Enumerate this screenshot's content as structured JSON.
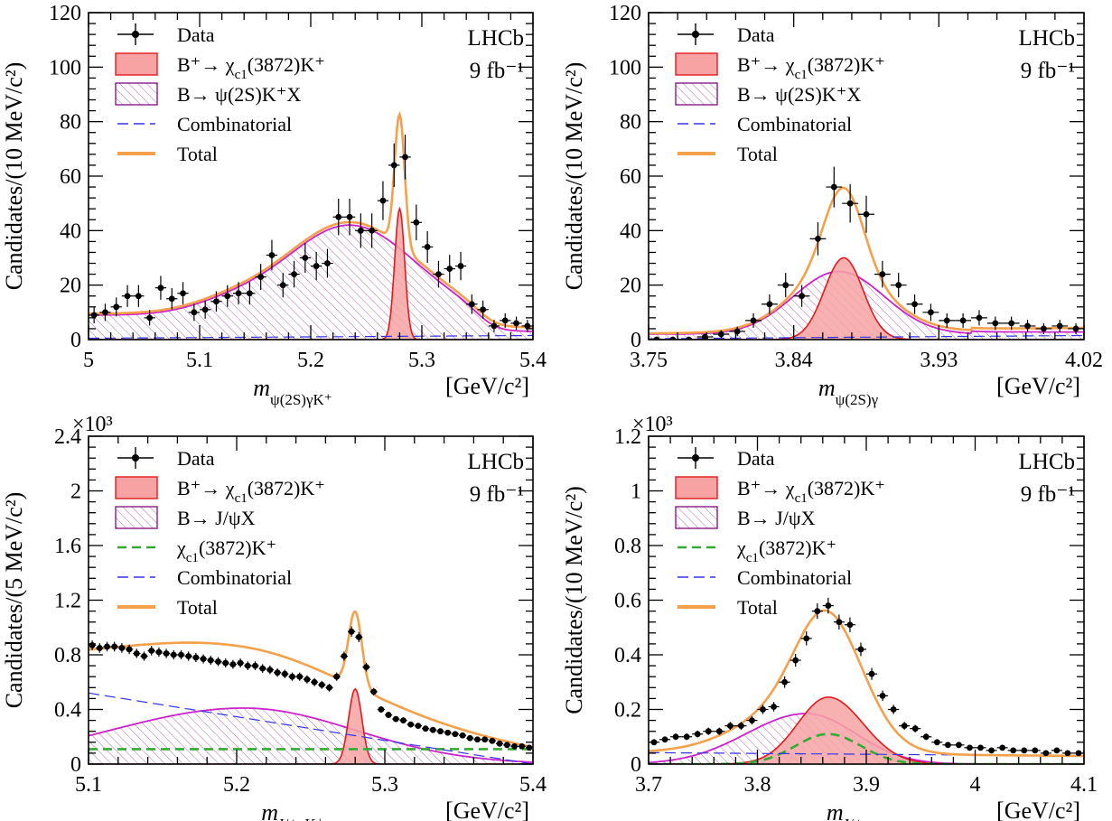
{
  "figure": {
    "legend_labels": {
      "data": "Data",
      "signal": "B⁺→ χ",
      "signal_sub": "c1",
      "signal_tail": "(3872)K⁺",
      "psi2s_bkg": "B→ ψ(2S)K⁺X",
      "jpsi_bkg": "B→ J/ψX",
      "chic_nonres": "χ",
      "chic_nonres_sub": "c1",
      "chic_nonres_tail": "(3872)K⁺",
      "comb": "Combinatorial",
      "total": "Total"
    },
    "experiment": "LHCb",
    "lumi": "9 fb⁻¹",
    "x_unit": "[GeV/c²]"
  },
  "chart_data": [
    {
      "type": "line",
      "panel": "top-left",
      "ylabel": "Candidates/(10 MeV/c²)",
      "xlabel": "m_ψ(2S)γK⁺",
      "xlim": [
        5.0,
        5.4
      ],
      "ylim": [
        0,
        120
      ],
      "xticks": [
        "5",
        "5.1",
        "5.2",
        "5.3",
        "5.4"
      ],
      "yticks": [
        "0",
        "20",
        "40",
        "60",
        "80",
        "100",
        "120"
      ],
      "y_multiplier": "",
      "legend": [
        "Data",
        "B⁺→ χc1(3872)K⁺",
        "B→ ψ(2S)K⁺X",
        "Combinatorial",
        "Total"
      ],
      "legend_placement": "top-left",
      "data_points": {
        "x": [
          5.005,
          5.015,
          5.025,
          5.035,
          5.045,
          5.055,
          5.065,
          5.075,
          5.085,
          5.095,
          5.105,
          5.115,
          5.125,
          5.135,
          5.145,
          5.155,
          5.165,
          5.175,
          5.185,
          5.195,
          5.205,
          5.215,
          5.225,
          5.235,
          5.245,
          5.255,
          5.265,
          5.275,
          5.285,
          5.295,
          5.305,
          5.315,
          5.325,
          5.335,
          5.345,
          5.355,
          5.365,
          5.375,
          5.385,
          5.395
        ],
        "y": [
          9,
          10,
          12,
          16,
          16,
          8,
          19,
          15,
          17,
          10,
          11,
          14,
          16,
          17,
          17,
          23,
          31,
          20,
          24,
          30,
          27,
          28,
          45,
          45,
          40,
          40,
          51,
          64,
          67,
          43,
          34,
          24,
          26,
          27,
          13,
          11,
          5,
          7,
          6,
          5
        ]
      },
      "signal": {
        "mean": 5.28,
        "sigma": 0.0045,
        "peak": 48
      },
      "background_peaking": {
        "shape": "broad hump",
        "peak_x": 5.235,
        "peak_y": 42,
        "plateau_y": 9,
        "tail_y": 3
      },
      "combinatorial": {
        "from_y": 0.5,
        "to_y": 1.5
      },
      "total": {
        "peak_x": 5.28,
        "peak_y": 82
      }
    },
    {
      "type": "line",
      "panel": "top-right",
      "ylabel": "Candidates/(10 MeV/c²)",
      "xlabel": "m_ψ(2S)γ",
      "xlim": [
        3.75,
        4.02
      ],
      "ylim": [
        0,
        120
      ],
      "xticks": [
        "3.75",
        "3.84",
        "3.93",
        "4.02"
      ],
      "yticks": [
        "0",
        "20",
        "40",
        "60",
        "80",
        "100",
        "120"
      ],
      "y_multiplier": "",
      "legend": [
        "Data",
        "B⁺→ χc1(3872)K⁺",
        "B→ ψ(2S)K⁺X",
        "Combinatorial",
        "Total"
      ],
      "legend_placement": "top-left",
      "data_points": {
        "x": [
          3.755,
          3.765,
          3.775,
          3.785,
          3.795,
          3.805,
          3.815,
          3.825,
          3.835,
          3.845,
          3.855,
          3.865,
          3.875,
          3.885,
          3.895,
          3.905,
          3.915,
          3.925,
          3.935,
          3.945,
          3.955,
          3.965,
          3.975,
          3.985,
          3.995,
          4.005,
          4.015
        ],
        "y": [
          0,
          0,
          0,
          1,
          2,
          3,
          7,
          13,
          20,
          16,
          37,
          56,
          50,
          46,
          24,
          20,
          13,
          10,
          7,
          7,
          8,
          6,
          6,
          5,
          4,
          5,
          4
        ]
      },
      "signal": {
        "mean": 3.871,
        "sigma": 0.012,
        "peak": 30
      },
      "background_peaking": {
        "mean": 3.868,
        "sigma": 0.028,
        "peak": 25,
        "tail_y": 2
      },
      "combinatorial": {
        "from_y": 0.3,
        "to_y": 1.5
      },
      "total": {
        "peak_x": 3.871,
        "peak_y": 58
      }
    },
    {
      "type": "line",
      "panel": "bottom-left",
      "ylabel": "Candidates/(5 MeV/c²)",
      "xlabel": "m_J/ψγK⁺",
      "xlim": [
        5.1,
        5.4
      ],
      "ylim": [
        0,
        2.4
      ],
      "xticks": [
        "5.1",
        "5.2",
        "5.3",
        "5.4"
      ],
      "yticks": [
        "0",
        "0.4",
        "0.8",
        "1.2",
        "1.6",
        "2",
        "2.4"
      ],
      "y_multiplier": "×10³",
      "legend": [
        "Data",
        "B⁺→ χc1(3872)K⁺",
        "B→ J/ψX",
        "χc1(3872)K⁺",
        "Combinatorial",
        "Total"
      ],
      "legend_placement": "top-left",
      "data_points": {
        "x": [
          5.1025,
          5.1075,
          5.1125,
          5.1175,
          5.1225,
          5.1275,
          5.1325,
          5.1375,
          5.1425,
          5.1475,
          5.1525,
          5.1575,
          5.1625,
          5.1675,
          5.1725,
          5.1775,
          5.1825,
          5.1875,
          5.1925,
          5.1975,
          5.2025,
          5.2075,
          5.2125,
          5.2175,
          5.2225,
          5.2275,
          5.2325,
          5.2375,
          5.2425,
          5.2475,
          5.2525,
          5.2575,
          5.2625,
          5.2675,
          5.2725,
          5.2775,
          5.2825,
          5.2875,
          5.2925,
          5.2975,
          5.3025,
          5.3075,
          5.3125,
          5.3175,
          5.3225,
          5.3275,
          5.3325,
          5.3375,
          5.3425,
          5.3475,
          5.3525,
          5.3575,
          5.3625,
          5.3675,
          5.3725,
          5.3775,
          5.3825,
          5.3875,
          5.3925,
          5.3975
        ],
        "y": [
          0.87,
          0.85,
          0.86,
          0.86,
          0.85,
          0.84,
          0.81,
          0.79,
          0.83,
          0.82,
          0.81,
          0.8,
          0.8,
          0.79,
          0.78,
          0.77,
          0.76,
          0.75,
          0.74,
          0.73,
          0.74,
          0.72,
          0.72,
          0.7,
          0.69,
          0.67,
          0.66,
          0.64,
          0.64,
          0.62,
          0.6,
          0.58,
          0.56,
          0.64,
          0.79,
          0.97,
          0.93,
          0.71,
          0.53,
          0.4,
          0.36,
          0.33,
          0.32,
          0.29,
          0.28,
          0.26,
          0.25,
          0.24,
          0.23,
          0.22,
          0.21,
          0.19,
          0.18,
          0.18,
          0.17,
          0.15,
          0.14,
          0.13,
          0.13,
          0.12
        ]
      },
      "signal": {
        "mean": 5.28,
        "sigma": 0.0045,
        "peak": 0.55
      },
      "background_peaking": {
        "mean": 5.205,
        "sigma_left": 0.09,
        "sigma_right": 0.075,
        "peak": 0.41
      },
      "chic_nonres": {
        "y": 0.11
      },
      "combinatorial": {
        "from_y": 0.52,
        "to_y": 0.0
      },
      "total": {
        "peak_x": 5.28,
        "peak_y": 0.97
      }
    },
    {
      "type": "line",
      "panel": "bottom-right",
      "ylabel": "Candidates/(10 MeV/c²)",
      "xlabel": "m_J/ψγ",
      "xlim": [
        3.7,
        4.1
      ],
      "ylim": [
        0,
        1.2
      ],
      "xticks": [
        "3.7",
        "3.8",
        "3.9",
        "4",
        "4.1"
      ],
      "yticks": [
        "0",
        "0.2",
        "0.4",
        "0.6",
        "0.8",
        "1",
        "1.2"
      ],
      "y_multiplier": "×10³",
      "legend": [
        "Data",
        "B⁺→ χc1(3872)K⁺",
        "B→ J/ψX",
        "χc1(3872)K⁺",
        "Combinatorial",
        "Total"
      ],
      "legend_placement": "top-left",
      "data_points": {
        "x": [
          3.705,
          3.715,
          3.725,
          3.735,
          3.745,
          3.755,
          3.765,
          3.775,
          3.785,
          3.795,
          3.805,
          3.815,
          3.825,
          3.835,
          3.845,
          3.855,
          3.865,
          3.875,
          3.885,
          3.895,
          3.905,
          3.915,
          3.925,
          3.935,
          3.945,
          3.955,
          3.965,
          3.975,
          3.985,
          3.995,
          4.005,
          4.015,
          4.025,
          4.035,
          4.045,
          4.055,
          4.065,
          4.075,
          4.085,
          4.095
        ],
        "y": [
          0.08,
          0.09,
          0.1,
          0.1,
          0.11,
          0.12,
          0.12,
          0.14,
          0.14,
          0.16,
          0.2,
          0.21,
          0.3,
          0.38,
          0.46,
          0.56,
          0.58,
          0.52,
          0.51,
          0.42,
          0.33,
          0.25,
          0.2,
          0.14,
          0.13,
          0.1,
          0.08,
          0.07,
          0.07,
          0.06,
          0.06,
          0.05,
          0.06,
          0.05,
          0.05,
          0.05,
          0.04,
          0.05,
          0.04,
          0.04
        ]
      },
      "signal": {
        "mean": 3.865,
        "sigma_left": 0.028,
        "sigma_right": 0.032,
        "peak": 0.245
      },
      "background_peaking": {
        "mean": 3.845,
        "sigma_left": 0.055,
        "sigma_right": 0.045,
        "peak": 0.185
      },
      "chic_nonres": {
        "mean": 3.865,
        "sigma": 0.03,
        "peak": 0.11
      },
      "combinatorial": {
        "from_y": 0.042,
        "to_y": 0.03
      },
      "total": {
        "peak_x": 3.865,
        "peak_y": 0.57
      }
    }
  ]
}
